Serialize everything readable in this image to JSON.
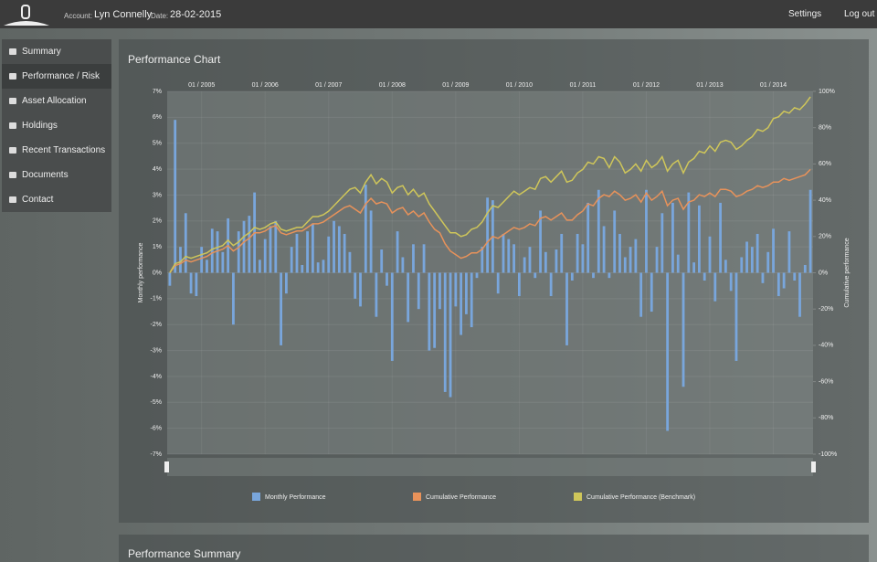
{
  "header": {
    "account_label": "Account:",
    "account_name": "Lyn Connelly",
    "date_label": "Date:",
    "date": "28-02-2015",
    "settings": "Settings",
    "logout": "Log out"
  },
  "nav": [
    "Summary",
    "Performance / Risk",
    "Asset Allocation",
    "Holdings",
    "Recent Transactions",
    "Documents",
    "Contact"
  ],
  "panel": {
    "title": "Performance Chart"
  },
  "summary": {
    "title": "Performance Summary"
  },
  "chart_data": {
    "type": "bar-line",
    "y_label": "Monthly performance",
    "y2_label": "Cumulative performance",
    "categories": [
      null,
      null,
      null,
      null,
      null,
      null,
      "01 / 2005",
      null,
      null,
      null,
      null,
      null,
      null,
      null,
      null,
      null,
      null,
      null,
      "01 / 2006",
      null,
      null,
      null,
      null,
      null,
      null,
      null,
      null,
      null,
      null,
      null,
      "01 / 2007",
      null,
      null,
      null,
      null,
      null,
      null,
      null,
      null,
      null,
      null,
      null,
      "01 / 2008",
      null,
      null,
      null,
      null,
      null,
      null,
      null,
      null,
      null,
      null,
      null,
      "01 / 2009",
      null,
      null,
      null,
      null,
      null,
      null,
      null,
      null,
      null,
      null,
      null,
      "01 / 2010",
      null,
      null,
      null,
      null,
      null,
      null,
      null,
      null,
      null,
      null,
      null,
      "01 / 2011",
      null,
      null,
      null,
      null,
      null,
      null,
      null,
      null,
      null,
      null,
      null,
      "01 / 2012",
      null,
      null,
      null,
      null,
      null,
      null,
      null,
      null,
      null,
      null,
      null,
      "01 / 2013",
      null,
      null,
      null,
      null,
      null,
      null,
      null,
      null,
      null,
      null,
      null,
      "01 / 2014",
      null,
      null,
      null,
      null,
      null,
      null,
      null
    ],
    "ylim": [
      -7,
      7
    ],
    "yticks": [
      {
        "value": -7,
        "label": "-7%"
      },
      {
        "value": -6,
        "label": "-6%"
      },
      {
        "value": -5,
        "label": "-5%"
      },
      {
        "value": -4,
        "label": "-4%"
      },
      {
        "value": -3,
        "label": "-3%"
      },
      {
        "value": -2,
        "label": "-2%"
      },
      {
        "value": -1,
        "label": "-1%"
      },
      {
        "value": 0,
        "label": "0%"
      },
      {
        "value": 1,
        "label": "1%"
      },
      {
        "value": 2,
        "label": "2%"
      },
      {
        "value": 3,
        "label": "3%"
      },
      {
        "value": 4,
        "label": "4%"
      },
      {
        "value": 5,
        "label": "5%"
      },
      {
        "value": 6,
        "label": "6%"
      },
      {
        "value": 7,
        "label": "7%"
      }
    ],
    "y2lim": [
      -100,
      100
    ],
    "y2ticks": [
      {
        "value": -100,
        "label": "-100%"
      },
      {
        "value": -80,
        "label": "-80%"
      },
      {
        "value": -60,
        "label": "-60%"
      },
      {
        "value": -40,
        "label": "-40%"
      },
      {
        "value": -20,
        "label": "-20%"
      },
      {
        "value": 0,
        "label": "0%"
      },
      {
        "value": 20,
        "label": "20%"
      },
      {
        "value": 40,
        "label": "40%"
      },
      {
        "value": 60,
        "label": "60%"
      },
      {
        "value": 80,
        "label": "80%"
      },
      {
        "value": 100,
        "label": "100%"
      }
    ],
    "series": [
      {
        "name": "Monthly Performance",
        "color": "#79a6dc",
        "kind": "bar",
        "values": [
          -0.5,
          5.9,
          1.0,
          2.3,
          -0.8,
          -0.9,
          1.0,
          0.5,
          1.7,
          1.6,
          0.8,
          2.1,
          -2.0,
          1.6,
          2.0,
          2.2,
          3.1,
          0.5,
          1.3,
          1.8,
          2.0,
          -2.8,
          -0.8,
          1.0,
          1.5,
          0.3,
          1.6,
          1.9,
          0.4,
          0.5,
          1.4,
          2.0,
          1.8,
          1.5,
          0.8,
          -1.0,
          -1.3,
          3.4,
          2.4,
          -1.7,
          0.9,
          -0.5,
          -3.4,
          1.6,
          0.6,
          -1.9,
          1.1,
          -1.4,
          1.1,
          -3.0,
          -2.9,
          -1.4,
          -4.6,
          -4.8,
          -1.3,
          -2.4,
          -1.6,
          -2.1,
          -0.2,
          1.0,
          2.9,
          2.8,
          -0.8,
          1.5,
          1.3,
          1.1,
          -0.9,
          0.6,
          1.0,
          -0.2,
          2.4,
          0.8,
          -0.9,
          0.9,
          1.5,
          -2.8,
          -0.3,
          1.5,
          1.1,
          2.7,
          -0.2,
          3.2,
          1.8,
          -0.2,
          2.4,
          1.5,
          0.6,
          1.0,
          1.3,
          -1.7,
          3.2,
          -1.5,
          1.0,
          2.3,
          -6.1,
          2.7,
          0.7,
          -4.4,
          3.1,
          0.4,
          2.6,
          -0.3,
          1.4,
          -1.1,
          2.7,
          0.5,
          -0.7,
          -3.4,
          0.6,
          1.2,
          1.0,
          1.5,
          -0.4,
          0.8,
          1.7,
          -0.9,
          -0.6,
          1.6,
          -0.3,
          -1.7,
          0.3,
          3.2
        ]
      },
      {
        "name": "Cumulative Performance",
        "color": "#e8925a",
        "kind": "line",
        "axis": "y2",
        "values": [
          0,
          4,
          5,
          7,
          6,
          7,
          8,
          9,
          11,
          12,
          13,
          15,
          12,
          14,
          17,
          19,
          22,
          22,
          23,
          25,
          26,
          22,
          21,
          22,
          23,
          23,
          25,
          27,
          27,
          28,
          30,
          32,
          34,
          36,
          37,
          35,
          33,
          38,
          41,
          38,
          39,
          38,
          33,
          35,
          36,
          32,
          34,
          31,
          33,
          28,
          24,
          22,
          16,
          12,
          10,
          8,
          9,
          11,
          11,
          13,
          17,
          20,
          19,
          21,
          23,
          25,
          24,
          25,
          27,
          26,
          30,
          31,
          29,
          31,
          33,
          29,
          29,
          32,
          34,
          38,
          37,
          41,
          43,
          42,
          45,
          43,
          40,
          41,
          43,
          39,
          44,
          40,
          42,
          45,
          37,
          40,
          41,
          35,
          39,
          40,
          43,
          42,
          44,
          42,
          46,
          46,
          45,
          42,
          43,
          45,
          46,
          48,
          47,
          48,
          50,
          50,
          52,
          51,
          52,
          53,
          54,
          57
        ]
      },
      {
        "name": "Cumulative Performance (Benchmark)",
        "color": "#cfc65a",
        "kind": "line",
        "axis": "y2",
        "values": [
          0,
          5,
          6,
          9,
          8,
          9,
          10,
          11,
          13,
          14,
          15,
          18,
          15,
          17,
          20,
          22,
          25,
          24,
          25,
          27,
          28,
          24,
          23,
          24,
          25,
          25,
          28,
          31,
          31,
          32,
          34,
          37,
          40,
          43,
          46,
          47,
          44,
          50,
          54,
          49,
          52,
          50,
          44,
          47,
          48,
          43,
          46,
          42,
          44,
          38,
          34,
          30,
          26,
          22,
          22,
          20,
          21,
          24,
          25,
          28,
          33,
          37,
          36,
          39,
          42,
          45,
          43,
          45,
          47,
          46,
          52,
          53,
          50,
          53,
          56,
          50,
          51,
          55,
          57,
          61,
          60,
          64,
          63,
          58,
          64,
          61,
          55,
          57,
          60,
          56,
          62,
          58,
          60,
          64,
          56,
          60,
          62,
          55,
          61,
          63,
          67,
          66,
          70,
          67,
          72,
          73,
          72,
          68,
          70,
          73,
          75,
          79,
          78,
          80,
          85,
          86,
          89,
          88,
          91,
          90,
          93,
          97
        ]
      }
    ],
    "grid": true
  }
}
